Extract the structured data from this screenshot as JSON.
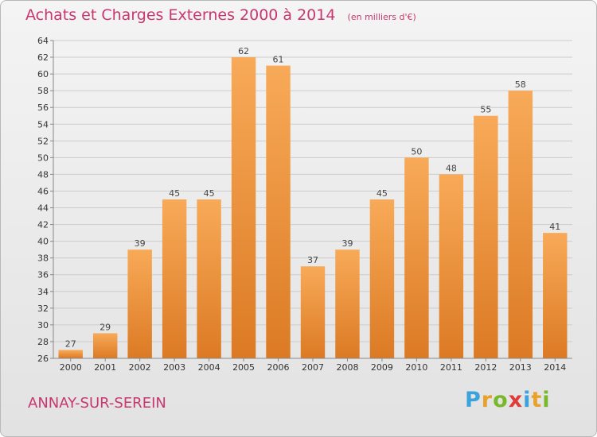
{
  "header": {
    "title": "Achats et Charges Externes 2000 à 2014",
    "unit": "(en milliers d'€)"
  },
  "footer": {
    "city": "ANNAY-SUR-SEREIN",
    "brand_letters": [
      "P",
      "r",
      "o",
      "x",
      "i",
      "t",
      "i"
    ],
    "brand_colors": [
      "#3aa3dc",
      "#e8a22b",
      "#78b82a",
      "#e03b3b",
      "#3aa3dc",
      "#e8a22b",
      "#78b82a"
    ]
  },
  "colors": {
    "title": "#c8376f",
    "bar_light": "#f8aa58",
    "bar_dark": "#dc7a24",
    "grid": "#cccccc"
  },
  "chart_data": {
    "type": "bar",
    "title": "Achats et Charges Externes 2000 à 2014",
    "categories": [
      "2000",
      "2001",
      "2002",
      "2003",
      "2004",
      "2005",
      "2006",
      "2007",
      "2008",
      "2009",
      "2010",
      "2011",
      "2012",
      "2013",
      "2014"
    ],
    "values": [
      27,
      29,
      39,
      45,
      45,
      62,
      61,
      37,
      39,
      45,
      50,
      48,
      55,
      58,
      41
    ],
    "ylim": [
      26,
      64
    ],
    "ytick_step": 2,
    "grid": true,
    "legend": "none"
  }
}
